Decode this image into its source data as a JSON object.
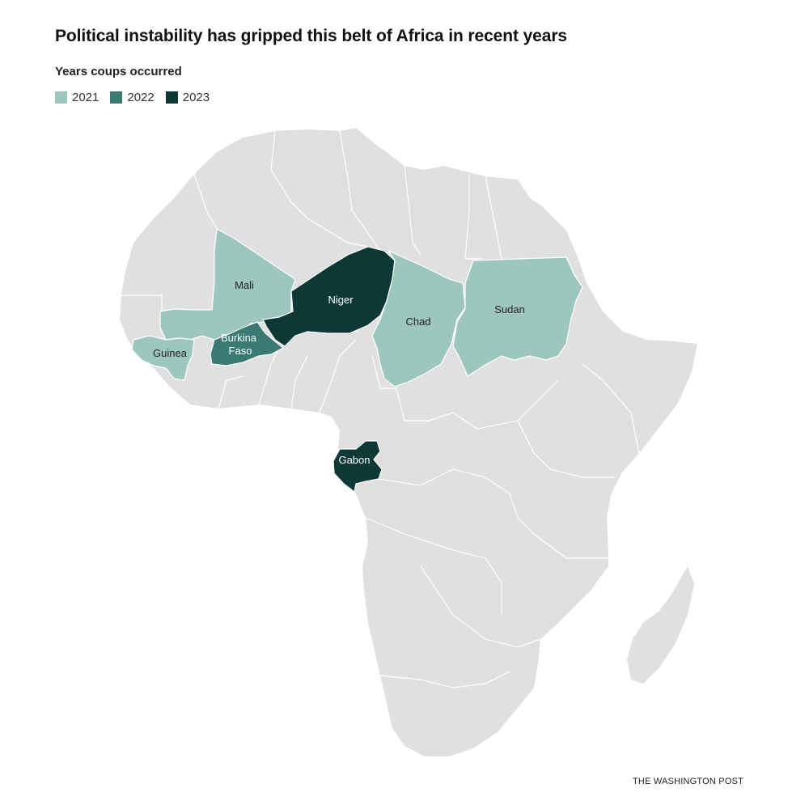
{
  "title": "Political instability has gripped this belt of Africa in recent years",
  "legend": {
    "title": "Years coups occurred",
    "items": [
      {
        "label": "2021",
        "color": "#9dc6bd"
      },
      {
        "label": "2022",
        "color": "#3a7a73"
      },
      {
        "label": "2023",
        "color": "#0d3836"
      }
    ]
  },
  "countries": {
    "mali": "Mali",
    "guinea": "Guinea",
    "burkina_faso_line1": "Burkina",
    "burkina_faso_line2": "Faso",
    "niger": "Niger",
    "chad": "Chad",
    "sudan": "Sudan",
    "gabon": "Gabon"
  },
  "base_color": "#e0e0e0",
  "credit": "THE WASHINGTON POST"
}
